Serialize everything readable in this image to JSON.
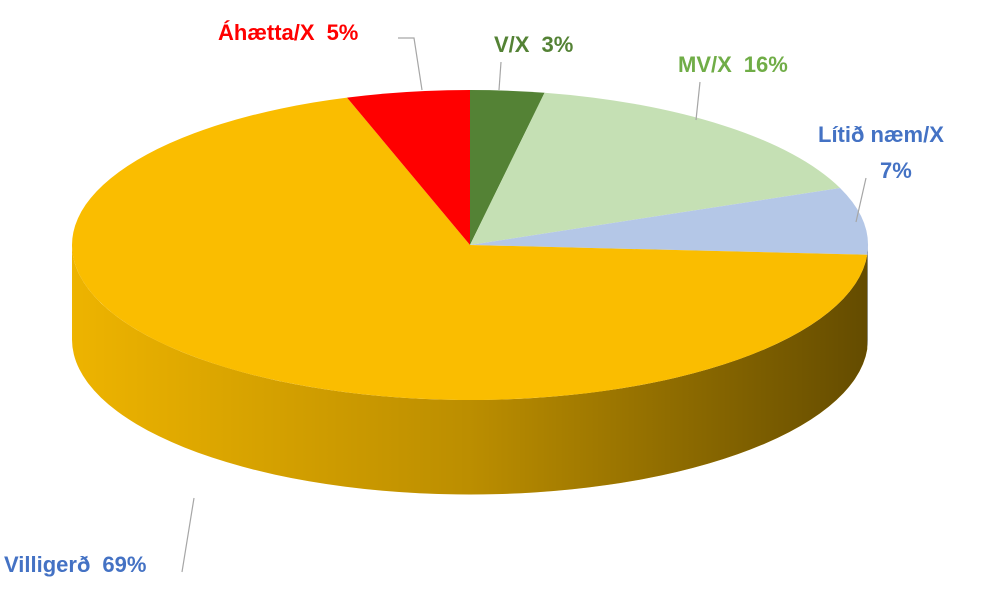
{
  "chart_data": {
    "type": "pie3d",
    "categories": [
      "V/X",
      "MV/X",
      "Lítið næm/X",
      "Villigerð",
      "Áhætta/X"
    ],
    "values": [
      3,
      16,
      7,
      69,
      5
    ],
    "value_labels": [
      "3%",
      "16%",
      "7%",
      "69%",
      "5%"
    ],
    "colors": [
      "#548235",
      "#c5e0b4",
      "#b4c7e7",
      "#fabd00",
      "#ff0000"
    ],
    "label_colors": [
      "#548235",
      "#70ad47",
      "#4472c4",
      "#4472c4",
      "#ff0000"
    ]
  }
}
